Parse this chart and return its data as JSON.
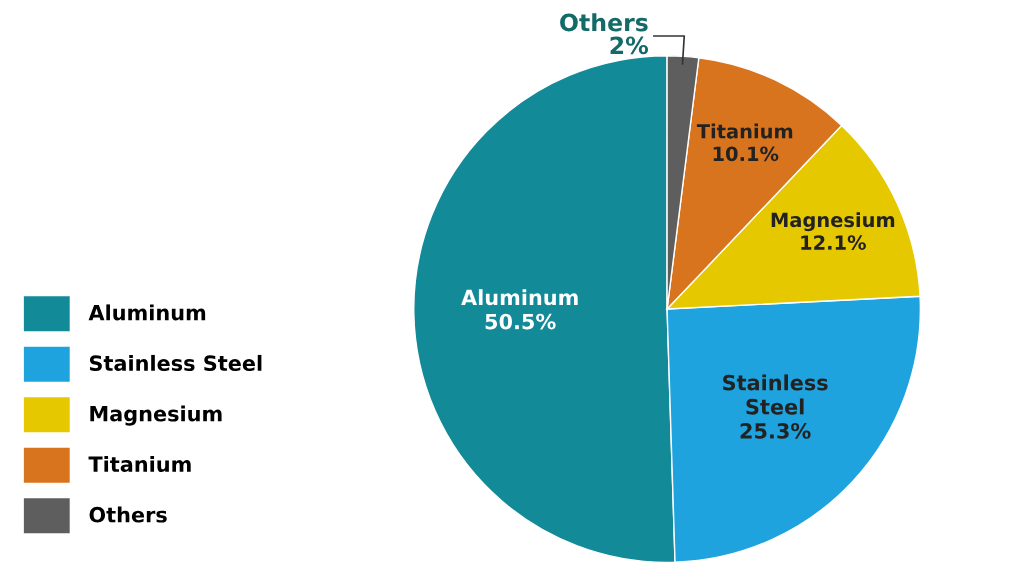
{
  "chart_data": {
    "type": "pie",
    "categories": [
      "Aluminum",
      "Stainless Steel",
      "Magnesium",
      "Titanium",
      "Others"
    ],
    "values": [
      50.5,
      25.3,
      12.1,
      10.1,
      2
    ],
    "value_labels": [
      "50.5%",
      "25.3%",
      "12.1%",
      "10.1%",
      "2%"
    ],
    "colors": [
      "#138a98",
      "#1fa3de",
      "#e6c800",
      "#d8741e",
      "#5e5e5e"
    ],
    "legend": "bottom left"
  }
}
